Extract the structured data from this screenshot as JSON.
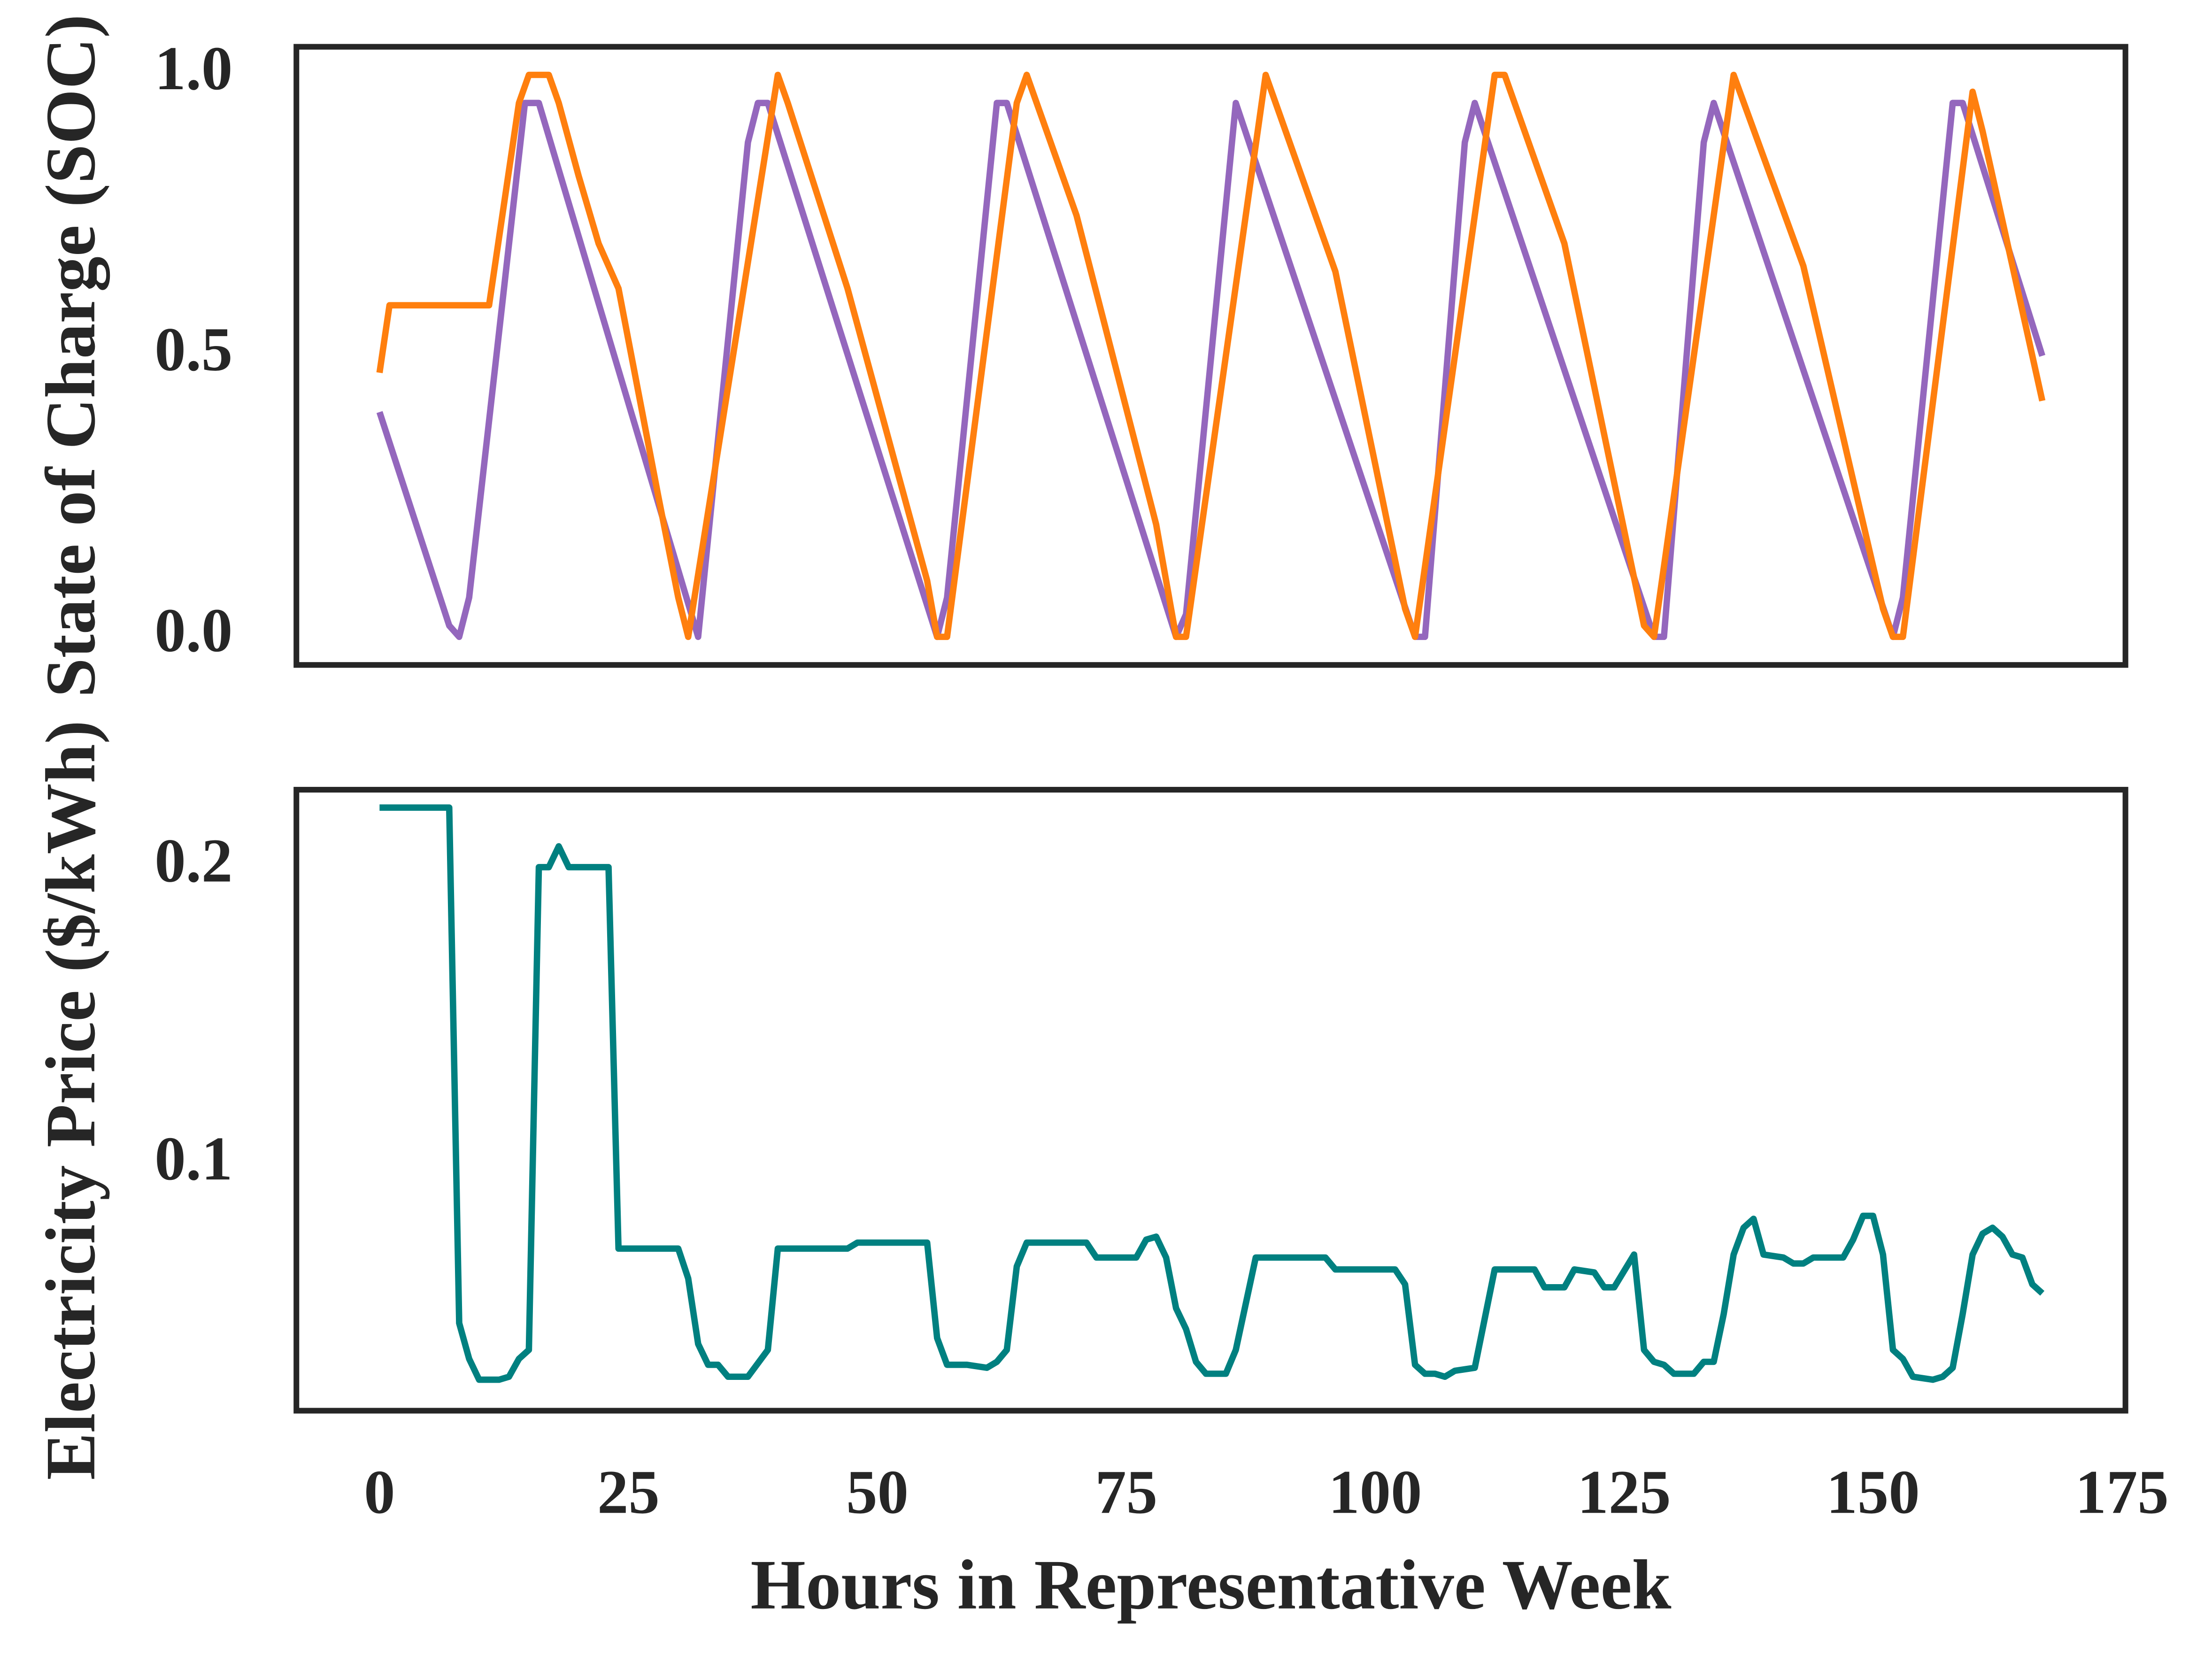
{
  "chart_data": [
    {
      "type": "line",
      "ylabel": "State of Charge (SOC)",
      "xlim": [
        -8.35,
        175.35
      ],
      "ylim": [
        -0.05,
        1.05
      ],
      "yticks": [
        {
          "value": 0,
          "label": "0.0"
        },
        {
          "value": 0.5,
          "label": "0.5"
        },
        {
          "value": 1,
          "label": "1.0"
        }
      ],
      "series": [
        {
          "color": "#9467bd",
          "x": [
            0,
            7,
            8,
            9,
            14.6,
            16,
            32,
            37,
            38,
            39,
            56,
            57,
            62,
            63,
            80,
            81,
            86,
            104,
            105,
            109,
            110,
            128,
            129,
            133,
            134,
            152,
            153,
            158,
            159,
            167
          ],
          "values": [
            0.4,
            0.02,
            0.0,
            0.07,
            0.95,
            0.95,
            0.0,
            0.88,
            0.95,
            0.95,
            0.0,
            0.07,
            0.95,
            0.95,
            0.0,
            0.04,
            0.95,
            0.0,
            0.0,
            0.88,
            0.95,
            0.0,
            0.0,
            0.88,
            0.95,
            0.0,
            0.07,
            0.95,
            0.95,
            0.5
          ]
        },
        {
          "color": "#ff7f0e",
          "x": [
            0,
            1,
            11,
            14,
            15,
            17,
            18,
            20,
            22,
            24,
            28,
            30,
            31,
            40,
            41,
            47,
            55,
            56,
            57,
            64,
            65,
            66,
            70,
            78,
            80,
            81,
            89,
            92,
            96,
            103,
            104,
            112,
            113,
            119,
            127,
            128,
            136,
            143,
            151,
            152,
            153,
            160,
            161,
            167
          ],
          "values": [
            0.47,
            0.59,
            0.59,
            0.95,
            1.0,
            1.0,
            0.95,
            0.82,
            0.7,
            0.62,
            0.25,
            0.07,
            0.0,
            1.0,
            0.95,
            0.62,
            0.1,
            0.0,
            0.0,
            0.95,
            1.0,
            0.95,
            0.75,
            0.2,
            0.0,
            0.0,
            1.0,
            0.85,
            0.65,
            0.05,
            0.0,
            1.0,
            1.0,
            0.7,
            0.02,
            0.0,
            1.0,
            0.66,
            0.05,
            0.0,
            0.0,
            0.97,
            0.9,
            0.42
          ]
        }
      ]
    },
    {
      "type": "line",
      "ylabel": "Electricity Price ($/kWh)",
      "xlabel": "Hours in Representative Week",
      "xlim": [
        -8.35,
        175.35
      ],
      "xticks": [
        0,
        25,
        50,
        75,
        100,
        125,
        150,
        175
      ],
      "ylim": [
        0.0176,
        0.226
      ],
      "yticks": [
        0.1,
        0.2
      ],
      "series": [
        {
          "color": "#008080",
          "x": [
            0,
            7,
            8,
            9,
            10,
            12,
            13,
            14,
            15,
            16,
            17,
            18,
            19,
            23,
            24,
            30,
            31,
            32,
            33,
            34,
            35,
            37,
            39,
            40,
            47,
            48,
            55,
            56,
            57,
            59,
            61,
            62,
            63,
            64,
            65,
            71,
            72,
            76,
            77,
            78,
            79,
            80,
            81,
            82,
            83,
            85,
            86,
            88,
            95,
            96,
            102,
            103,
            104,
            105,
            106,
            107,
            108,
            110,
            112,
            116,
            117,
            119,
            120,
            122,
            123,
            124,
            126,
            127,
            128,
            129,
            130,
            132,
            133,
            134,
            135,
            136,
            137,
            138,
            139,
            141,
            142,
            143,
            144,
            147,
            148,
            149,
            150,
            151,
            152,
            153,
            154,
            156,
            157,
            158,
            159,
            160,
            161,
            162,
            163,
            164,
            165,
            166,
            167
          ],
          "values": [
            0.22,
            0.22,
            0.047,
            0.035,
            0.028,
            0.028,
            0.029,
            0.035,
            0.038,
            0.2,
            0.2,
            0.207,
            0.2,
            0.2,
            0.072,
            0.072,
            0.062,
            0.04,
            0.033,
            0.033,
            0.029,
            0.029,
            0.038,
            0.072,
            0.072,
            0.074,
            0.074,
            0.042,
            0.033,
            0.033,
            0.032,
            0.034,
            0.038,
            0.066,
            0.074,
            0.074,
            0.069,
            0.069,
            0.075,
            0.076,
            0.069,
            0.052,
            0.045,
            0.034,
            0.03,
            0.03,
            0.038,
            0.069,
            0.069,
            0.065,
            0.065,
            0.06,
            0.033,
            0.03,
            0.03,
            0.029,
            0.031,
            0.032,
            0.065,
            0.065,
            0.059,
            0.059,
            0.065,
            0.064,
            0.059,
            0.059,
            0.07,
            0.038,
            0.034,
            0.033,
            0.03,
            0.03,
            0.034,
            0.034,
            0.05,
            0.07,
            0.079,
            0.082,
            0.07,
            0.069,
            0.067,
            0.067,
            0.069,
            0.069,
            0.075,
            0.083,
            0.083,
            0.07,
            0.038,
            0.035,
            0.029,
            0.028,
            0.029,
            0.032,
            0.05,
            0.07,
            0.077,
            0.079,
            0.076,
            0.07,
            0.069,
            0.06,
            0.057
          ]
        }
      ]
    }
  ]
}
